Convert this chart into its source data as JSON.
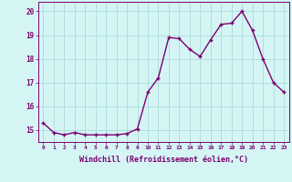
{
  "x": [
    0,
    1,
    2,
    3,
    4,
    5,
    6,
    7,
    8,
    9,
    10,
    11,
    12,
    13,
    14,
    15,
    16,
    17,
    18,
    19,
    20,
    21,
    22,
    23
  ],
  "y": [
    15.3,
    14.9,
    14.8,
    14.9,
    14.8,
    14.8,
    14.8,
    14.8,
    14.85,
    15.05,
    16.6,
    17.2,
    18.9,
    18.85,
    18.4,
    18.1,
    18.8,
    19.45,
    19.5,
    20.0,
    19.2,
    18.0,
    17.0,
    16.6
  ],
  "line_color": "#7b0070",
  "marker_color": "#7b0070",
  "bg_color": "#d5f5f5",
  "grid_color": "#b0dede",
  "xlabel": "Windchill (Refroidissement éolien,°C)",
  "ylim": [
    14.5,
    20.4
  ],
  "xlim": [
    -0.5,
    23.5
  ],
  "yticks": [
    15,
    16,
    17,
    18,
    19,
    20
  ],
  "xticks": [
    0,
    1,
    2,
    3,
    4,
    5,
    6,
    7,
    8,
    9,
    10,
    11,
    12,
    13,
    14,
    15,
    16,
    17,
    18,
    19,
    20,
    21,
    22,
    23
  ],
  "xtick_labels": [
    "0",
    "1",
    "2",
    "3",
    "4",
    "5",
    "6",
    "7",
    "8",
    "9",
    "10",
    "11",
    "12",
    "13",
    "14",
    "15",
    "16",
    "17",
    "18",
    "19",
    "20",
    "21",
    "22",
    "23"
  ],
  "tick_color": "#7b0070",
  "label_color": "#7b0070",
  "marker_size": 2.5,
  "line_width": 1.0
}
